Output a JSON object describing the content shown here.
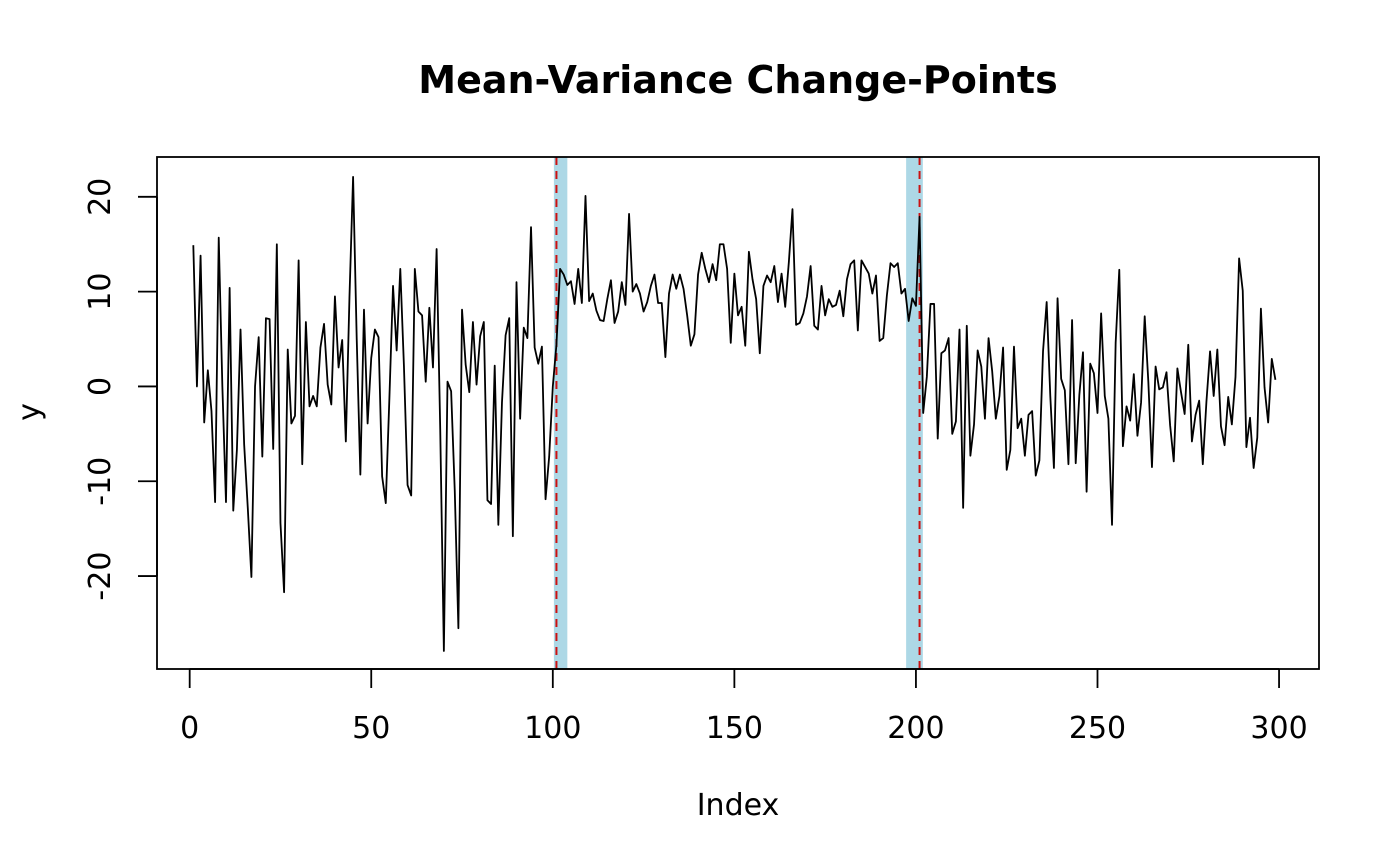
{
  "chart_data": {
    "type": "line",
    "title": "Mean-Variance Change-Points",
    "xlabel": "Index",
    "ylabel": "y",
    "xlim": [
      -9,
      311
    ],
    "ylim": [
      -29.8,
      24.2
    ],
    "x_ticks": [
      0,
      50,
      100,
      150,
      200,
      250,
      300
    ],
    "y_ticks": [
      -20,
      -10,
      0,
      10,
      20
    ],
    "grid": false,
    "legend": "none",
    "series": [
      {
        "color": "#000000",
        "x_start": 1,
        "values": [
          14.9,
          0.0,
          13.8,
          -3.8,
          1.7,
          -2.6,
          -12.2,
          15.7,
          0.0,
          -12.2,
          10.4,
          -13.1,
          -6.7,
          6.0,
          -6.1,
          -12.8,
          -20.1,
          0.0,
          5.2,
          -7.4,
          7.2,
          7.1,
          -6.6,
          15.0,
          -14.4,
          -21.7,
          3.9,
          -3.9,
          -3.1,
          13.3,
          -8.2,
          6.8,
          -2.1,
          -1.0,
          -2.1,
          4.1,
          6.6,
          0.2,
          -1.9,
          9.5,
          2.0,
          4.9,
          -5.8,
          9.4,
          22.1,
          5.0,
          -9.3,
          8.1,
          -3.9,
          3.0,
          6.0,
          5.2,
          -9.5,
          -12.3,
          -1.2,
          10.6,
          3.8,
          12.4,
          2.2,
          -10.4,
          -11.5,
          12.4,
          7.9,
          7.5,
          0.5,
          8.3,
          2.0,
          14.5,
          -4.6,
          -27.9,
          0.5,
          -0.5,
          -11.0,
          -25.5,
          8.1,
          2.3,
          -0.6,
          6.8,
          0.2,
          5.3,
          6.8,
          -12.0,
          -12.4,
          2.2,
          -14.6,
          -1.7,
          5.4,
          7.2,
          -15.8,
          11.0,
          -3.4,
          6.2,
          5.1,
          16.8,
          4.1,
          2.4,
          4.2,
          -11.9,
          -7.4,
          0.0,
          4.4,
          12.4,
          11.8,
          10.7,
          11.1,
          8.7,
          12.4,
          8.8,
          20.1,
          9.0,
          9.8,
          8.0,
          7.0,
          6.9,
          9.2,
          11.2,
          6.7,
          7.9,
          11.0,
          8.6,
          18.2,
          10.0,
          10.8,
          9.8,
          7.9,
          8.9,
          10.6,
          11.8,
          8.8,
          8.8,
          3.1,
          9.8,
          11.8,
          10.3,
          11.8,
          10.3,
          7.5,
          4.3,
          5.5,
          11.8,
          14.1,
          12.4,
          11.0,
          12.9,
          11.2,
          15.0,
          15.0,
          12.4,
          4.6,
          11.9,
          7.5,
          8.4,
          4.3,
          14.2,
          11.3,
          9.2,
          3.5,
          10.6,
          11.7,
          11.0,
          12.7,
          8.9,
          11.9,
          8.4,
          13.1,
          18.7,
          6.5,
          6.7,
          7.7,
          9.5,
          12.7,
          6.4,
          6.0,
          10.6,
          7.5,
          9.2,
          8.4,
          8.6,
          10.1,
          7.4,
          11.3,
          12.9,
          13.3,
          5.9,
          13.3,
          12.6,
          11.9,
          9.8,
          11.7,
          4.8,
          5.1,
          9.6,
          13.0,
          12.6,
          13.0,
          9.8,
          10.3,
          6.9,
          9.3,
          8.5,
          17.9,
          -2.8,
          1.0,
          8.7,
          8.7,
          -5.5,
          3.5,
          3.8,
          5.1,
          -5.0,
          -3.7,
          6.0,
          -12.8,
          6.4,
          -7.3,
          -4.0,
          3.8,
          2.1,
          -3.4,
          5.1,
          1.6,
          -3.4,
          -1.0,
          4.1,
          -8.8,
          -6.7,
          4.2,
          -4.4,
          -3.4,
          -7.3,
          -3.0,
          -2.6,
          -9.4,
          -7.8,
          3.7,
          8.9,
          -1.0,
          -8.6,
          9.3,
          0.8,
          -0.4,
          -8.2,
          7.0,
          -8.1,
          -0.9,
          3.6,
          -11.1,
          2.4,
          1.4,
          -2.8,
          7.7,
          -1.0,
          -3.4,
          -14.6,
          4.6,
          12.3,
          -6.3,
          -2.1,
          -3.6,
          1.3,
          -5.2,
          -1.7,
          7.4,
          0.5,
          -8.5,
          2.1,
          -0.3,
          -0.1,
          1.5,
          -4.1,
          -7.9,
          1.9,
          -0.6,
          -2.9,
          4.4,
          -5.8,
          -3.0,
          -1.5,
          -8.2,
          -1.6,
          3.7,
          -1.0,
          3.9,
          -4.2,
          -6.2,
          -1.1,
          -4.0,
          1.0,
          13.5,
          10.1,
          -6.4,
          -3.3,
          -8.6,
          -5.4,
          8.2,
          -0.1,
          -3.8,
          2.9,
          0.7
        ]
      }
    ],
    "highlight_bands": [
      {
        "x0": 100.3,
        "x1": 104.0,
        "color": "#add8e6"
      },
      {
        "x0": 197.3,
        "x1": 201.9,
        "color": "#add8e6"
      }
    ],
    "changepoints": [
      {
        "x": 101,
        "color": "#cc1111",
        "style": "dashed"
      },
      {
        "x": 201,
        "color": "#cc1111",
        "style": "dashed"
      }
    ]
  }
}
